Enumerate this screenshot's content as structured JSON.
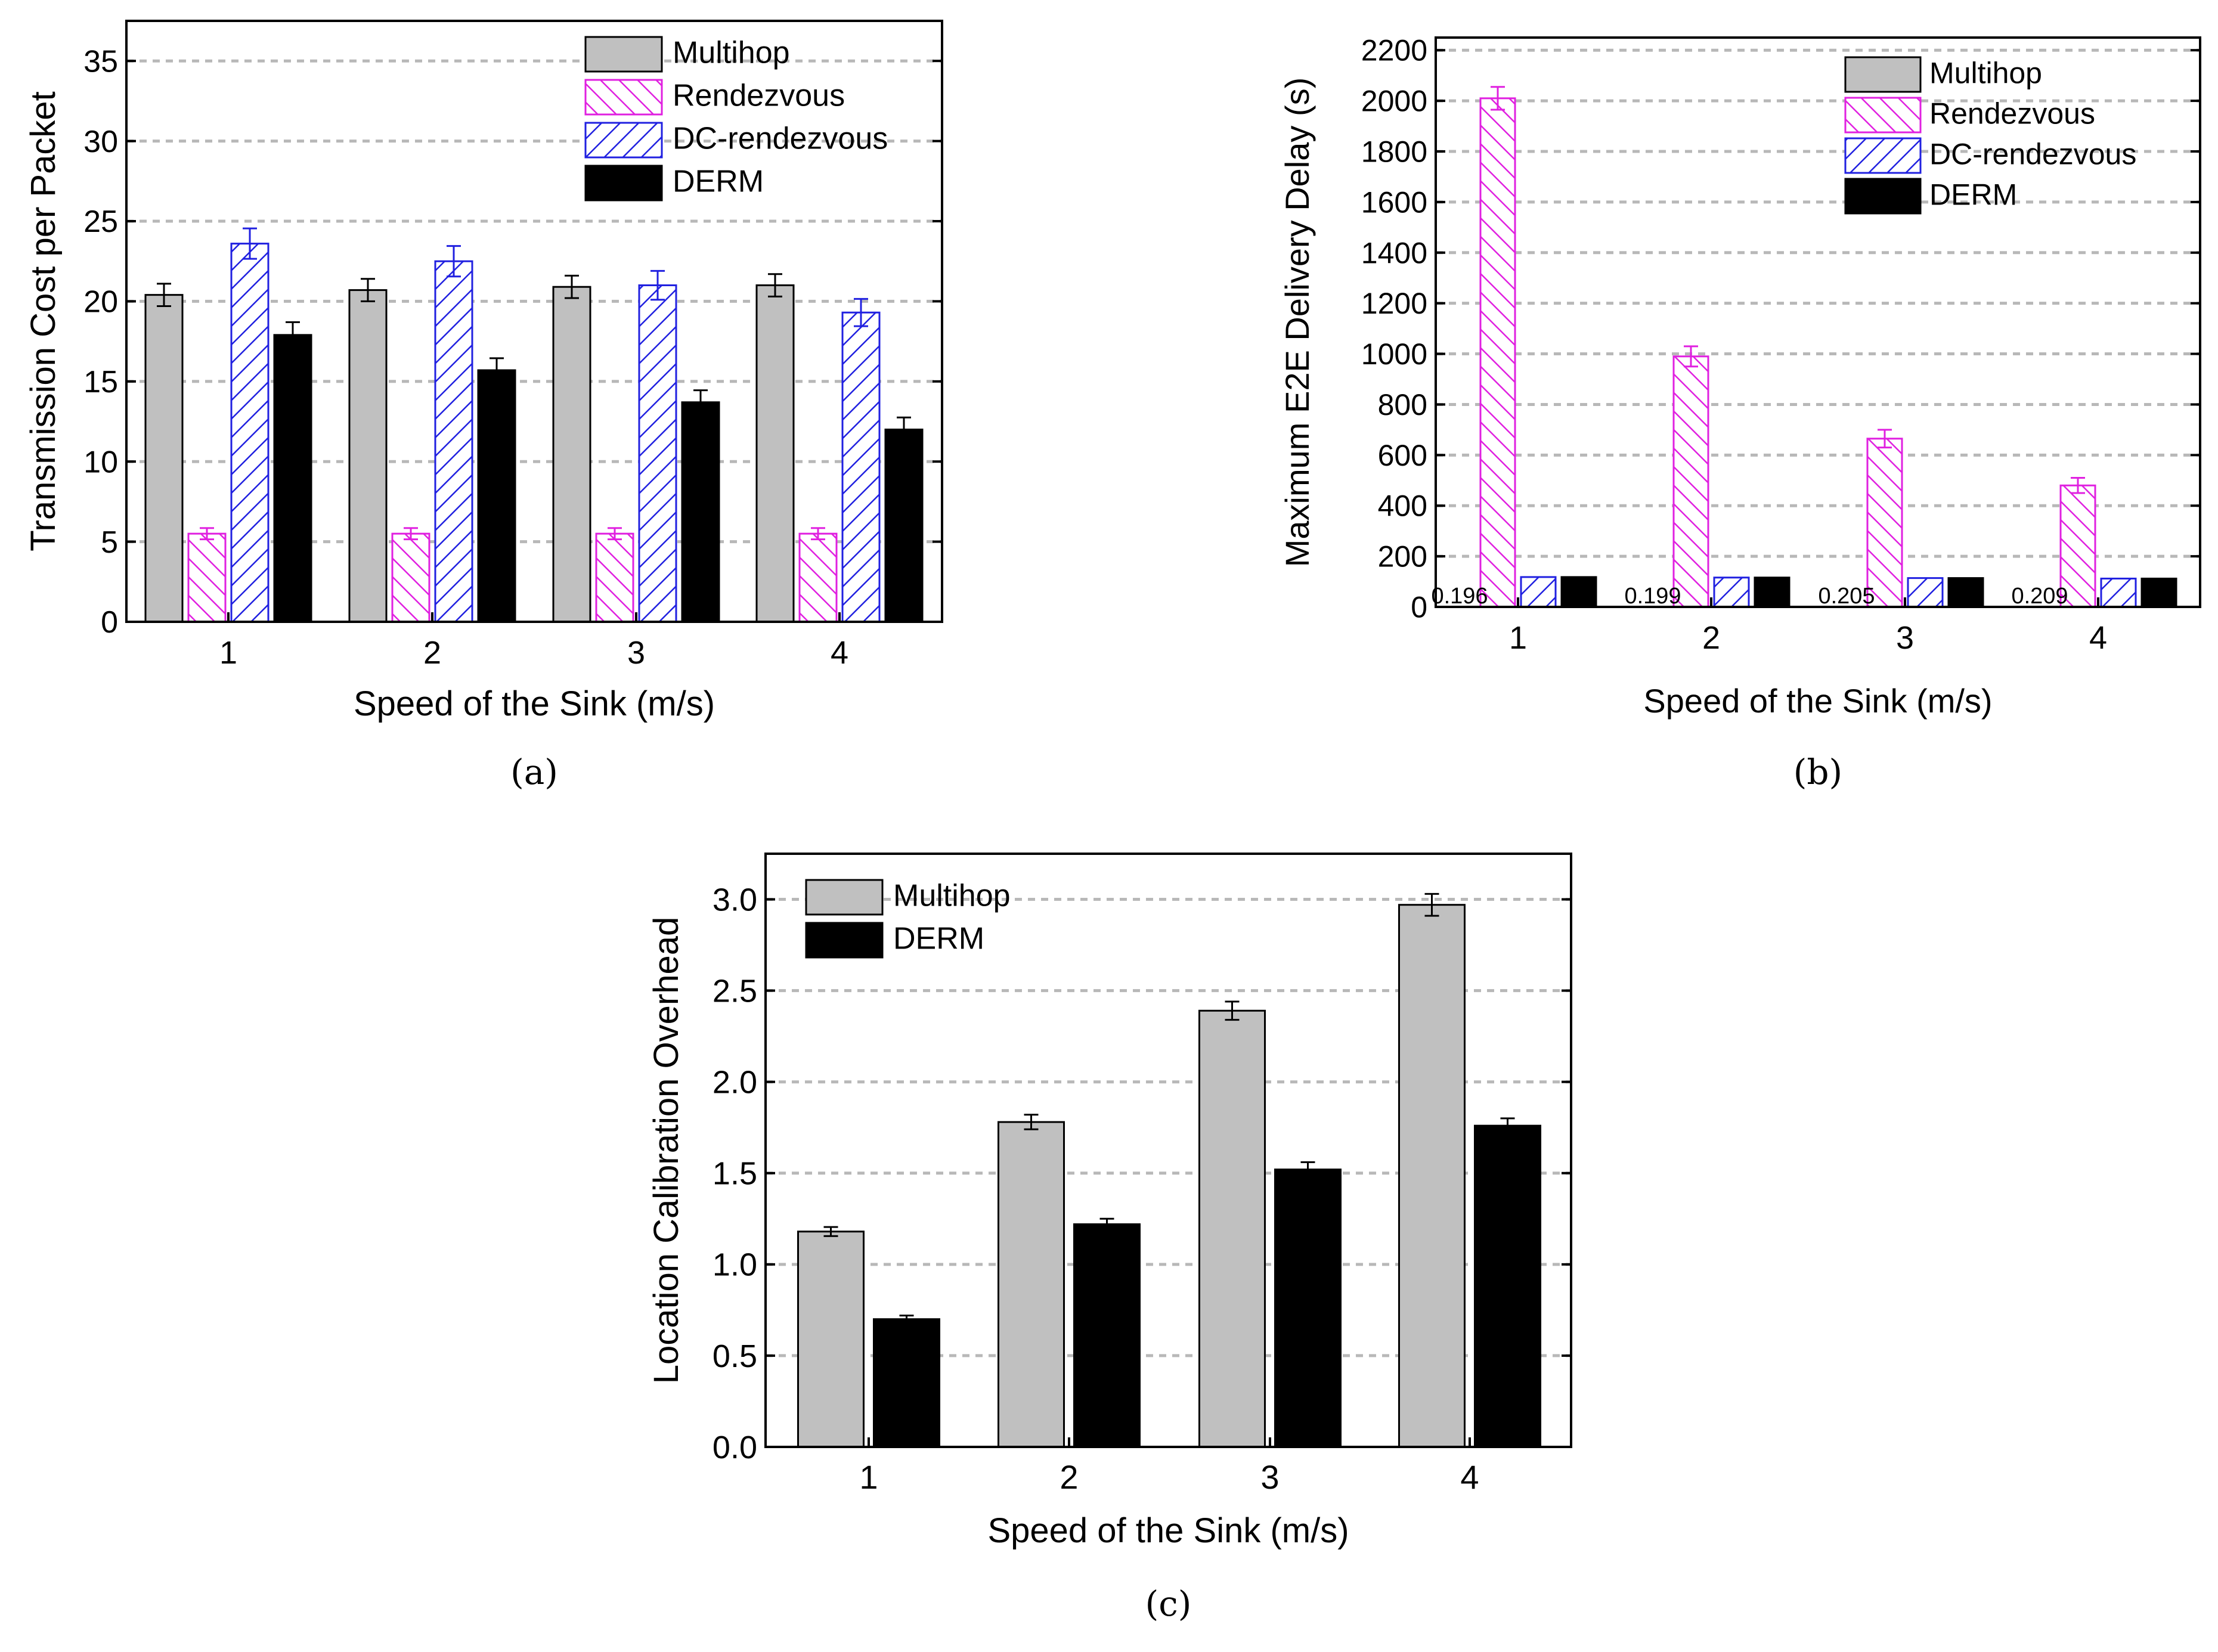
{
  "chart_data": [
    {
      "type": "bar",
      "panel_label": "(a)",
      "title": "",
      "xlabel": "Speed of the Sink (m/s)",
      "ylabel": "Transmission Cost per Packet",
      "ylim": [
        0,
        37.5
      ],
      "yticks": [
        0,
        5,
        10,
        15,
        20,
        25,
        30,
        35
      ],
      "ytick_labels": [
        "0",
        "5",
        "10",
        "15",
        "20",
        "25",
        "30",
        "35"
      ],
      "grid": true,
      "legend_position": "top-right",
      "categories": [
        "1",
        "2",
        "3",
        "4"
      ],
      "series": [
        {
          "name": "Multihop",
          "style": "gray",
          "values": [
            20.4,
            20.7,
            20.9,
            21.0
          ],
          "errors": [
            0.7,
            0.7,
            0.7,
            0.7
          ]
        },
        {
          "name": "Rendezvous",
          "style": "magenta-hatch",
          "values": [
            5.5,
            5.5,
            5.5,
            5.5
          ],
          "errors": [
            0.35,
            0.35,
            0.35,
            0.35
          ]
        },
        {
          "name": "DC-rendezvous",
          "style": "blue-hatch",
          "values": [
            23.6,
            22.5,
            21.0,
            19.3
          ],
          "errors": [
            0.95,
            0.95,
            0.9,
            0.85
          ]
        },
        {
          "name": "DERM",
          "style": "black",
          "values": [
            17.9,
            15.7,
            13.7,
            12.0
          ],
          "errors": [
            0.8,
            0.75,
            0.75,
            0.75
          ]
        }
      ]
    },
    {
      "type": "bar",
      "panel_label": "(b)",
      "title": "",
      "xlabel": "Speed of the Sink (m/s)",
      "ylabel": "Maximum E2E Delivery Delay (s)",
      "ylim": [
        0,
        2250
      ],
      "yticks": [
        0,
        200,
        400,
        600,
        800,
        1000,
        1200,
        1400,
        1600,
        1800,
        2000,
        2200
      ],
      "ytick_labels": [
        "0",
        "200",
        "400",
        "600",
        "800",
        "1000",
        "1200",
        "1400",
        "1600",
        "1800",
        "2000",
        "2200"
      ],
      "grid": true,
      "legend_position": "top-right",
      "categories": [
        "1",
        "2",
        "3",
        "4"
      ],
      "annotations": [
        "0.196",
        "0.199",
        "0.205",
        "0.209"
      ],
      "series": [
        {
          "name": "Multihop",
          "style": "gray",
          "values": [
            0.196,
            0.199,
            0.205,
            0.209
          ],
          "errors": [
            0,
            0,
            0,
            0
          ]
        },
        {
          "name": "Rendezvous",
          "style": "magenta-hatch",
          "values": [
            2010,
            990,
            665,
            480
          ],
          "errors": [
            45,
            40,
            35,
            30
          ]
        },
        {
          "name": "DC-rendezvous",
          "style": "blue-hatch",
          "values": [
            118,
            116,
            114,
            112
          ],
          "errors": [
            0,
            0,
            0,
            0
          ]
        },
        {
          "name": "DERM",
          "style": "black",
          "values": [
            118,
            116,
            114,
            112
          ],
          "errors": [
            0,
            0,
            0,
            0
          ]
        }
      ]
    },
    {
      "type": "bar",
      "panel_label": "(c)",
      "title": "",
      "xlabel": "Speed of the Sink (m/s)",
      "ylabel": "Location Calibration Overhead",
      "ylim": [
        0,
        3.25
      ],
      "yticks": [
        0,
        0.5,
        1,
        1.5,
        2,
        2.5,
        3
      ],
      "ytick_labels": [
        "0.0",
        "0.5",
        "1.0",
        "1.5",
        "2.0",
        "2.5",
        "3.0"
      ],
      "grid": true,
      "legend_position": "top-left",
      "categories": [
        "1",
        "2",
        "3",
        "4"
      ],
      "series": [
        {
          "name": "Multihop",
          "style": "gray",
          "values": [
            1.18,
            1.78,
            2.39,
            2.97
          ],
          "errors": [
            0.025,
            0.04,
            0.05,
            0.06
          ]
        },
        {
          "name": "DERM",
          "style": "black",
          "values": [
            0.7,
            1.22,
            1.52,
            1.76
          ],
          "errors": [
            0.02,
            0.03,
            0.04,
            0.04
          ]
        }
      ]
    }
  ]
}
